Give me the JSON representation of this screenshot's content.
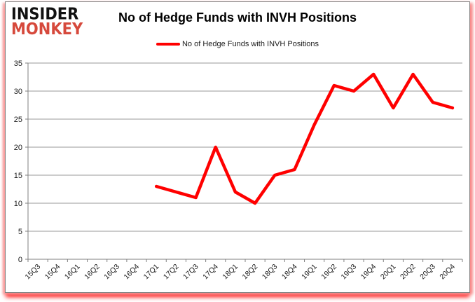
{
  "brand": {
    "line1": "INSIDER",
    "line2": "MONKEY",
    "monkey_color": "#d6493c"
  },
  "header": {
    "title": "No of Hedge Funds with INVH Positions"
  },
  "legend": {
    "label": "No of Hedge Funds with INVH Positions",
    "line_color": "#ff0000"
  },
  "chart_data": {
    "type": "line",
    "title": "No of Hedge Funds with INVH Positions",
    "categories": [
      "15Q3",
      "15Q4",
      "16Q1",
      "16Q2",
      "16Q3",
      "16Q4",
      "17Q1",
      "17Q2",
      "17Q3",
      "17Q4",
      "18Q1",
      "18Q2",
      "18Q3",
      "18Q4",
      "19Q1",
      "19Q2",
      "19Q3",
      "19Q4",
      "20Q1",
      "20Q2",
      "20Q3",
      "20Q4"
    ],
    "series": [
      {
        "name": "No of Hedge Funds with INVH Positions",
        "color": "#ff0000",
        "values": [
          null,
          null,
          null,
          null,
          null,
          null,
          13,
          12,
          11,
          20,
          12,
          10,
          15,
          16,
          24,
          31,
          30,
          33,
          27,
          33,
          28,
          27
        ]
      }
    ],
    "xlabel": "",
    "ylabel": "",
    "ylim": [
      0,
      35
    ],
    "ytick_step": 5,
    "grid": true,
    "legend_position": "top",
    "colors": {
      "gridline": "#999999",
      "axis": "#7f7f7f",
      "tick_label": "#1a1a1a"
    }
  }
}
